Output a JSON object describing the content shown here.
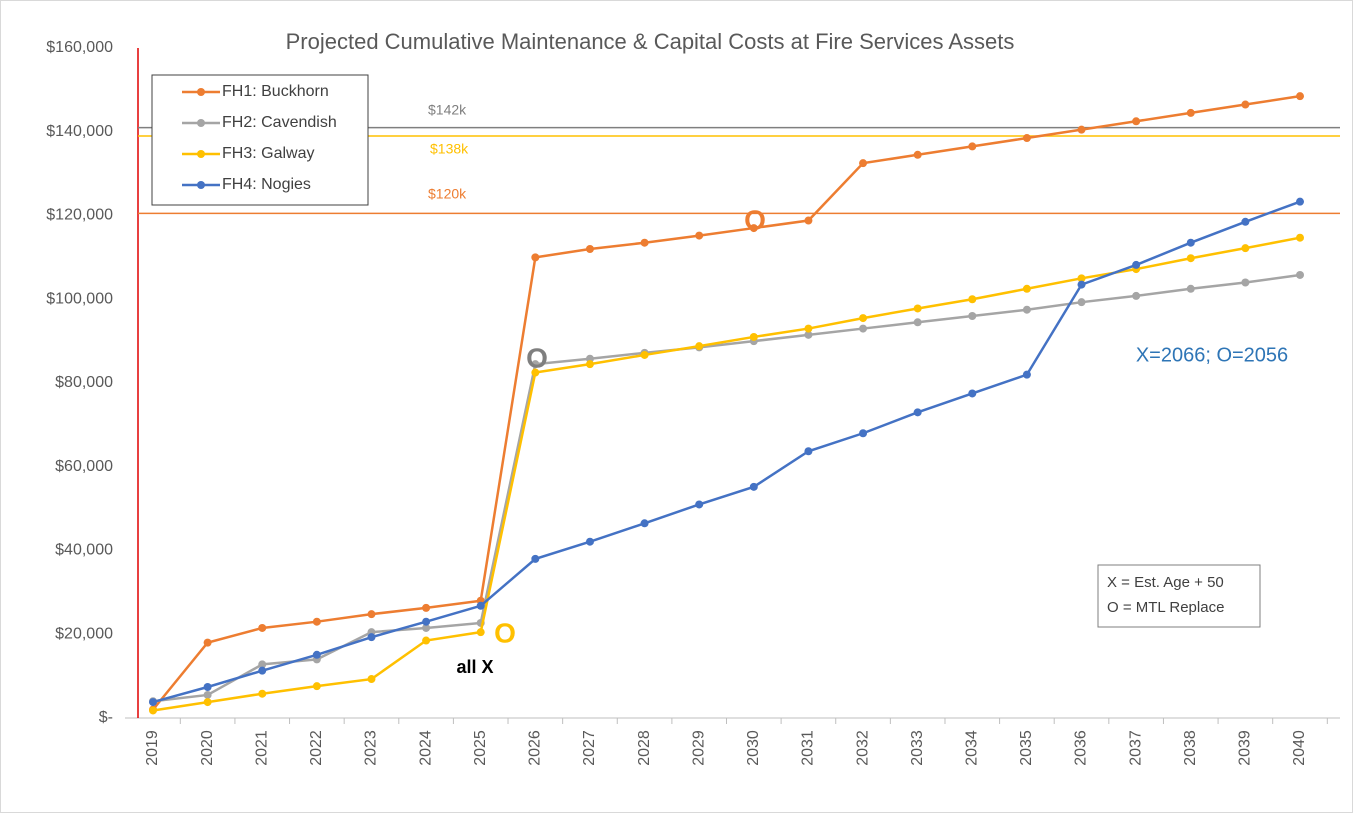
{
  "chart_data": {
    "type": "line",
    "title": "Projected Cumulative Maintenance & Capital Costs at Fire Services Assets",
    "categories": [
      "2019",
      "2020",
      "2021",
      "2022",
      "2023",
      "2024",
      "2025",
      "2026",
      "2027",
      "2028",
      "2029",
      "2030",
      "2031",
      "2032",
      "2033",
      "2034",
      "2035",
      "2036",
      "2037",
      "2038",
      "2039",
      "2040"
    ],
    "series": [
      {
        "name": "FH1: Buckhorn",
        "color": "#ed7d31",
        "values": [
          2000,
          18000,
          21500,
          23000,
          24800,
          26300,
          28000,
          110000,
          112000,
          113500,
          115200,
          117000,
          118800,
          132500,
          134500,
          136500,
          138500,
          140500,
          142500,
          144500,
          146500,
          148500
        ]
      },
      {
        "name": "FH2: Cavendish",
        "color": "#a5a5a5",
        "values": [
          4000,
          5500,
          12800,
          14000,
          20500,
          21500,
          22700,
          84500,
          85800,
          87200,
          88500,
          90000,
          91500,
          93000,
          94500,
          96000,
          97500,
          99300,
          100800,
          102500,
          104000,
          105800
        ]
      },
      {
        "name": "FH3: Galway",
        "color": "#ffc000",
        "values": [
          1800,
          3800,
          5800,
          7600,
          9300,
          18500,
          20500,
          82500,
          84500,
          86700,
          88800,
          91000,
          93000,
          95500,
          97800,
          100000,
          102500,
          105000,
          107200,
          109800,
          112200,
          114700
        ]
      },
      {
        "name": "FH4: Nogies",
        "color": "#4472c4",
        "values": [
          3800,
          7400,
          11300,
          15100,
          19300,
          23000,
          26800,
          38000,
          42100,
          46500,
          51000,
          55200,
          63700,
          68000,
          73000,
          77500,
          82000,
          103500,
          108200,
          113500,
          118500,
          123300
        ]
      }
    ],
    "ylim": [
      0,
      160000
    ],
    "yticks": [
      {
        "value": 0,
        "label": "$-"
      },
      {
        "value": 20000,
        "label": "$20,000"
      },
      {
        "value": 40000,
        "label": "$40,000"
      },
      {
        "value": 60000,
        "label": "$60,000"
      },
      {
        "value": 80000,
        "label": "$80,000"
      },
      {
        "value": 100000,
        "label": "$100,000"
      },
      {
        "value": 120000,
        "label": "$120,000"
      },
      {
        "value": 140000,
        "label": "$140,000"
      },
      {
        "value": 160000,
        "label": "$160,000"
      }
    ],
    "ref_lines": [
      {
        "value": 141000,
        "label": "$142k",
        "color": "#7f7f7f"
      },
      {
        "value": 139000,
        "label": "$138k",
        "color": "#ffc000"
      },
      {
        "value": 120500,
        "label": "$120k",
        "color": "#ed7d31"
      }
    ],
    "annotations": [
      {
        "text": "O",
        "color": "#ed7d31"
      },
      {
        "text": "O",
        "color": "#7f7f7f"
      },
      {
        "text": "O",
        "color": "#ffc000"
      },
      {
        "text": "all X",
        "color": "#000000"
      },
      {
        "text": "X=2066; O=2056",
        "color": "#2e75b6"
      }
    ],
    "note_box": [
      "X = Est. Age + 50",
      "O = MTL Replace"
    ],
    "legend": "top-left"
  }
}
